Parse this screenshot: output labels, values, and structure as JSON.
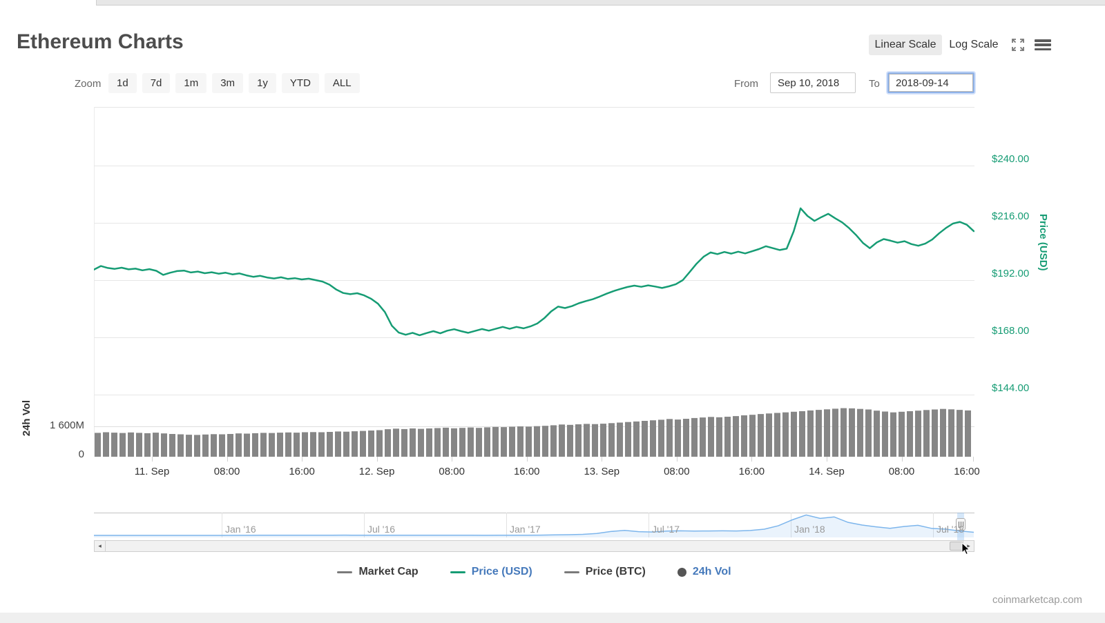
{
  "header": {
    "title": "Ethereum Charts",
    "linear_label": "Linear Scale",
    "log_label": "Log Scale"
  },
  "toolbar": {
    "zoom_label": "Zoom",
    "zoom_buttons": [
      "1d",
      "7d",
      "1m",
      "3m",
      "1y",
      "YTD",
      "ALL"
    ],
    "from_label": "From",
    "from_value": "Sep 10, 2018",
    "to_label": "To",
    "to_value": "2018-09-14"
  },
  "icons": {
    "scrollbar_left": "◂",
    "scrollbar_right": "▸"
  },
  "colors": {
    "price_line": "#169c74",
    "volume_bar": "#868686",
    "navigator_line": "#7cb5ec",
    "grid": "#e6e6e6",
    "legend_active_text": "#4579bb",
    "legend_inactive_text": "#3c3c3c"
  },
  "legend": [
    {
      "label": "Market Cap",
      "marker": "dash",
      "marker_color": "#7a7a7a",
      "text_color": "#3c3c3c"
    },
    {
      "label": "Price (USD)",
      "marker": "dash",
      "marker_color": "#169c74",
      "text_color": "#4579bb"
    },
    {
      "label": "Price (BTC)",
      "marker": "dash",
      "marker_color": "#7a7a7a",
      "text_color": "#3c3c3c"
    },
    {
      "label": "24h Vol",
      "marker": "circle",
      "marker_color": "#555555",
      "text_color": "#4579bb"
    }
  ],
  "watermark": "coinmarketcap.com",
  "chart_data": [
    {
      "type": "line",
      "name": "Price (USD)",
      "color": "#169c74",
      "ylabel": "Price (USD)",
      "ylim": [
        144,
        240
      ],
      "y_tick_labels": [
        "$240.00",
        "$216.00",
        "$192.00",
        "$168.00",
        "$144.00"
      ],
      "y_tick_values": [
        240,
        216,
        192,
        168,
        144
      ],
      "x_tick_labels": [
        "11. Sep",
        "08:00",
        "16:00",
        "12. Sep",
        "08:00",
        "16:00",
        "13. Sep",
        "08:00",
        "16:00",
        "14. Sep",
        "08:00",
        "16:00"
      ],
      "x_range": "Sep 10, 2018 evening to Sep 14, 2018 16:00 (5-minute points)",
      "grid": true,
      "values": [
        196.4,
        197.9,
        197.1,
        196.7,
        197.2,
        196.5,
        196.8,
        196.1,
        196.6,
        195.9,
        194.2,
        195.1,
        195.8,
        196.0,
        195.2,
        195.6,
        194.9,
        195.3,
        194.7,
        195.1,
        194.4,
        194.8,
        194.0,
        193.4,
        193.8,
        193.1,
        192.7,
        193.2,
        192.5,
        192.8,
        192.3,
        192.6,
        192.0,
        191.4,
        190.1,
        188.0,
        186.6,
        186.1,
        186.5,
        185.6,
        184.2,
        182.1,
        178.6,
        172.9,
        170.0,
        169.1,
        169.9,
        168.9,
        169.8,
        170.6,
        169.7,
        170.8,
        171.4,
        170.6,
        169.9,
        170.7,
        171.5,
        170.8,
        171.6,
        172.4,
        171.6,
        172.4,
        171.8,
        172.6,
        173.8,
        176.0,
        178.9,
        180.9,
        180.3,
        181.1,
        182.3,
        183.2,
        184.0,
        185.1,
        186.3,
        187.4,
        188.3,
        189.1,
        189.7,
        189.2,
        189.8,
        189.3,
        188.7,
        189.4,
        190.3,
        192.0,
        195.4,
        198.9,
        201.8,
        203.6,
        202.9,
        203.8,
        203.1,
        203.9,
        203.2,
        204.1,
        205.0,
        206.2,
        205.4,
        204.6,
        205.2,
        212.4,
        222.1,
        218.9,
        216.8,
        218.4,
        219.8,
        217.9,
        216.2,
        213.8,
        210.9,
        207.6,
        205.4,
        207.8,
        209.2,
        208.5,
        207.7,
        208.3,
        207.1,
        206.4,
        207.3,
        209.0,
        211.6,
        213.9,
        215.7,
        216.4,
        215.2,
        212.5
      ]
    },
    {
      "type": "bar",
      "name": "24h Vol",
      "color": "#868686",
      "ylabel": "24h Vol",
      "unit": "M (USD millions)",
      "y_tick_labels": [
        "1 600M",
        "0"
      ],
      "y_tick_values": [
        1600,
        0
      ],
      "values": [
        1260,
        1290,
        1270,
        1250,
        1280,
        1260,
        1240,
        1270,
        1230,
        1200,
        1180,
        1160,
        1150,
        1170,
        1190,
        1180,
        1200,
        1230,
        1220,
        1240,
        1260,
        1250,
        1270,
        1280,
        1270,
        1290,
        1300,
        1290,
        1310,
        1330,
        1320,
        1340,
        1360,
        1380,
        1400,
        1450,
        1480,
        1460,
        1490,
        1470,
        1490,
        1510,
        1530,
        1500,
        1520,
        1540,
        1520,
        1550,
        1570,
        1560,
        1580,
        1600,
        1590,
        1610,
        1630,
        1660,
        1700,
        1680,
        1710,
        1730,
        1720,
        1740,
        1770,
        1800,
        1830,
        1860,
        1890,
        1920,
        1950,
        1990,
        1960,
        2000,
        2040,
        2070,
        2100,
        2080,
        2110,
        2140,
        2180,
        2210,
        2250,
        2280,
        2310,
        2340,
        2370,
        2400,
        2440,
        2470,
        2500,
        2530,
        2560,
        2550,
        2520,
        2490,
        2430,
        2380,
        2340,
        2370,
        2400,
        2430,
        2460,
        2490,
        2520,
        2500,
        2470,
        2440
      ]
    },
    {
      "type": "area",
      "name": "navigator (all-time Price USD)",
      "color": "#7cb5ec",
      "x_tick_labels": [
        "Jan '16",
        "Jul '16",
        "Jan '17",
        "Jul '17",
        "Jan '18",
        "Jul '18"
      ],
      "x_range": "Aug 2015 to Sep 2018",
      "ylim": [
        0,
        1400
      ],
      "values": [
        1.3,
        1,
        0.8,
        0.7,
        0.9,
        1,
        0.9,
        1,
        1.4,
        2.3,
        4,
        6,
        9,
        11,
        10,
        9.5,
        11,
        13,
        15,
        12,
        11,
        11.5,
        12,
        13,
        12.5,
        12,
        11,
        9.5,
        8,
        9,
        10.5,
        13,
        20,
        35,
        48,
        70,
        130,
        260,
        340,
        250,
        230,
        290,
        310,
        290,
        300,
        310,
        300,
        330,
        420,
        650,
        1050,
        1380,
        1150,
        1250,
        880,
        700,
        580,
        480,
        600,
        680,
        470,
        420,
        300,
        210
      ]
    }
  ]
}
